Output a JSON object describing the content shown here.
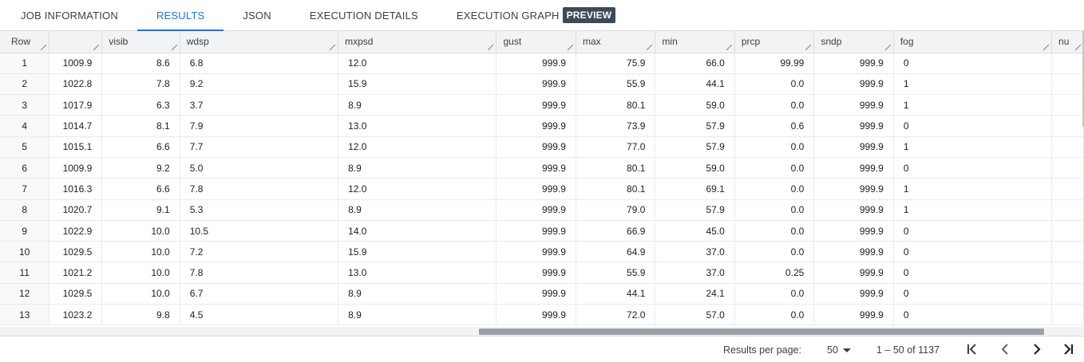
{
  "tabs": [
    {
      "label": "JOB INFORMATION",
      "active": false
    },
    {
      "label": "RESULTS",
      "active": true
    },
    {
      "label": "JSON",
      "active": false
    },
    {
      "label": "EXECUTION DETAILS",
      "active": false
    },
    {
      "label": "EXECUTION GRAPH",
      "active": false,
      "badge": "PREVIEW"
    }
  ],
  "accent_color": "#1a73e8",
  "columns": [
    "Row",
    "",
    "visib",
    "wdsp",
    "mxpsd",
    "gust",
    "max",
    "min",
    "prcp",
    "sndp",
    "fog",
    "nu"
  ],
  "rows": [
    [
      "1",
      "1009.9",
      "8.6",
      "6.8",
      "12.0",
      "999.9",
      "75.9",
      "66.0",
      "99.99",
      "999.9",
      "0",
      ""
    ],
    [
      "2",
      "1022.8",
      "7.8",
      "9.2",
      "15.9",
      "999.9",
      "55.9",
      "44.1",
      "0.0",
      "999.9",
      "1",
      ""
    ],
    [
      "3",
      "1017.9",
      "6.3",
      "3.7",
      "8.9",
      "999.9",
      "80.1",
      "59.0",
      "0.0",
      "999.9",
      "1",
      ""
    ],
    [
      "4",
      "1014.7",
      "8.1",
      "7.9",
      "13.0",
      "999.9",
      "73.9",
      "57.9",
      "0.6",
      "999.9",
      "0",
      ""
    ],
    [
      "5",
      "1015.1",
      "6.6",
      "7.7",
      "12.0",
      "999.9",
      "77.0",
      "57.9",
      "0.0",
      "999.9",
      "1",
      ""
    ],
    [
      "6",
      "1009.9",
      "9.2",
      "5.0",
      "8.9",
      "999.9",
      "80.1",
      "59.0",
      "0.0",
      "999.9",
      "0",
      ""
    ],
    [
      "7",
      "1016.3",
      "6.6",
      "7.8",
      "12.0",
      "999.9",
      "80.1",
      "69.1",
      "0.0",
      "999.9",
      "1",
      ""
    ],
    [
      "8",
      "1020.7",
      "9.1",
      "5.3",
      "8.9",
      "999.9",
      "79.0",
      "57.9",
      "0.0",
      "999.9",
      "1",
      ""
    ],
    [
      "9",
      "1022.9",
      "10.0",
      "10.5",
      "14.0",
      "999.9",
      "66.9",
      "45.0",
      "0.0",
      "999.9",
      "0",
      ""
    ],
    [
      "10",
      "1029.5",
      "10.0",
      "7.2",
      "15.9",
      "999.9",
      "64.9",
      "37.0",
      "0.0",
      "999.9",
      "0",
      ""
    ],
    [
      "11",
      "1021.2",
      "10.0",
      "7.8",
      "13.0",
      "999.9",
      "55.9",
      "37.0",
      "0.25",
      "999.9",
      "0",
      ""
    ],
    [
      "12",
      "1029.5",
      "10.0",
      "6.7",
      "8.9",
      "999.9",
      "44.1",
      "24.1",
      "0.0",
      "999.9",
      "0",
      ""
    ],
    [
      "13",
      "1023.2",
      "9.8",
      "4.5",
      "8.9",
      "999.9",
      "72.0",
      "57.0",
      "0.0",
      "999.9",
      "0",
      ""
    ]
  ],
  "footer": {
    "rpp_label": "Results per page:",
    "rpp_value": "50",
    "range": "1 – 50 of 1137"
  },
  "icons": {
    "first": "first-page-icon",
    "prev": "chevron-left-icon",
    "next": "chevron-right-icon",
    "last": "last-page-icon"
  }
}
